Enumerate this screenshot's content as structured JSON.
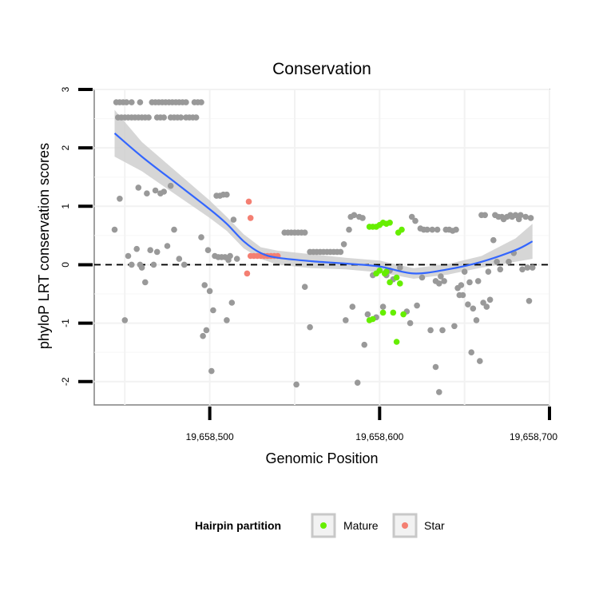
{
  "chart_data": {
    "type": "scatter",
    "title": "Conservation",
    "xlabel": "Genomic Position",
    "ylabel": "phyloP LRT conservation scores",
    "xlim": [
      19658432,
      19658700
    ],
    "ylim": [
      -2.4,
      3.0
    ],
    "x_ticks": [
      19658500,
      19658600,
      19658700
    ],
    "x_tick_labels": [
      "19,658,500",
      "19,658,600",
      "19,658,700"
    ],
    "y_ticks": [
      -2,
      -1,
      0,
      1,
      2,
      3
    ],
    "y_tick_labels": [
      "-2",
      "-1",
      "0",
      "1",
      "2",
      "3"
    ],
    "reference_line": {
      "y": 0,
      "style": "dashed"
    },
    "grid": true,
    "legend": {
      "title": "Hairpin partition",
      "position": "bottom",
      "entries": [
        {
          "label": "Mature",
          "color": "#66ee00"
        },
        {
          "label": "Star",
          "color": "#f47f72"
        }
      ]
    },
    "colors": {
      "background": "#e6e6e6",
      "points": "#999999",
      "smooth": "#3366ff",
      "ribbon": "#cfcfcf"
    },
    "series": [
      {
        "name": "Other",
        "color": "#999999",
        "points": [
          [
            19658445,
            2.78
          ],
          [
            19658447,
            2.78
          ],
          [
            19658449,
            2.78
          ],
          [
            19658451,
            2.78
          ],
          [
            19658454,
            2.78
          ],
          [
            19658459,
            2.78
          ],
          [
            19658466,
            2.78
          ],
          [
            19658468,
            2.78
          ],
          [
            19658470,
            2.78
          ],
          [
            19658472,
            2.78
          ],
          [
            19658474,
            2.78
          ],
          [
            19658476,
            2.78
          ],
          [
            19658478,
            2.78
          ],
          [
            19658480,
            2.78
          ],
          [
            19658482,
            2.78
          ],
          [
            19658484,
            2.78
          ],
          [
            19658486,
            2.78
          ],
          [
            19658491,
            2.78
          ],
          [
            19658493,
            2.78
          ],
          [
            19658495,
            2.78
          ],
          [
            19658446,
            2.52
          ],
          [
            19658448,
            2.52
          ],
          [
            19658450,
            2.52
          ],
          [
            19658452,
            2.52
          ],
          [
            19658454,
            2.52
          ],
          [
            19658456,
            2.52
          ],
          [
            19658458,
            2.52
          ],
          [
            19658460,
            2.52
          ],
          [
            19658462,
            2.52
          ],
          [
            19658464,
            2.52
          ],
          [
            19658469,
            2.52
          ],
          [
            19658471,
            2.52
          ],
          [
            19658473,
            2.52
          ],
          [
            19658477,
            2.52
          ],
          [
            19658479,
            2.52
          ],
          [
            19658481,
            2.52
          ],
          [
            19658483,
            2.52
          ],
          [
            19658486,
            2.52
          ],
          [
            19658488,
            2.52
          ],
          [
            19658490,
            2.52
          ],
          [
            19658492,
            2.52
          ],
          [
            19658444,
            0.6
          ],
          [
            19658447,
            1.13
          ],
          [
            19658450,
            -0.95
          ],
          [
            19658452,
            0.15
          ],
          [
            19658454,
            0.0
          ],
          [
            19658457,
            0.27
          ],
          [
            19658458,
            1.32
          ],
          [
            19658459,
            0.0
          ],
          [
            19658460,
            -0.05
          ],
          [
            19658462,
            -0.3
          ],
          [
            19658463,
            1.22
          ],
          [
            19658465,
            0.25
          ],
          [
            19658467,
            0.0
          ],
          [
            19658468,
            1.27
          ],
          [
            19658469,
            0.22
          ],
          [
            19658471,
            1.22
          ],
          [
            19658473,
            1.25
          ],
          [
            19658475,
            0.32
          ],
          [
            19658477,
            1.35
          ],
          [
            19658479,
            0.6
          ],
          [
            19658482,
            0.1
          ],
          [
            19658485,
            0.0
          ],
          [
            19658495,
            0.47
          ],
          [
            19658496,
            -1.22
          ],
          [
            19658497,
            -0.35
          ],
          [
            19658498,
            -1.12
          ],
          [
            19658499,
            0.25
          ],
          [
            19658500,
            -0.45
          ],
          [
            19658501,
            -1.82
          ],
          [
            19658502,
            -0.78
          ],
          [
            19658503,
            0.15
          ],
          [
            19658504,
            1.18
          ],
          [
            19658505,
            0.13
          ],
          [
            19658506,
            1.18
          ],
          [
            19658507,
            0.13
          ],
          [
            19658508,
            1.2
          ],
          [
            19658509,
            0.13
          ],
          [
            19658510,
            1.2
          ],
          [
            19658510,
            -0.95
          ],
          [
            19658511,
            0.08
          ],
          [
            19658512,
            0.15
          ],
          [
            19658513,
            -0.65
          ],
          [
            19658514,
            0.77
          ],
          [
            19658516,
            0.1
          ],
          [
            19658544,
            0.55
          ],
          [
            19658546,
            0.55
          ],
          [
            19658548,
            0.55
          ],
          [
            19658550,
            0.55
          ],
          [
            19658552,
            0.55
          ],
          [
            19658554,
            0.55
          ],
          [
            19658556,
            0.55
          ],
          [
            19658551,
            -2.05
          ],
          [
            19658556,
            -0.38
          ],
          [
            19658559,
            -1.07
          ],
          [
            19658559,
            0.22
          ],
          [
            19658561,
            0.22
          ],
          [
            19658563,
            0.22
          ],
          [
            19658565,
            0.22
          ],
          [
            19658567,
            0.22
          ],
          [
            19658569,
            0.22
          ],
          [
            19658571,
            0.22
          ],
          [
            19658573,
            0.22
          ],
          [
            19658575,
            0.22
          ],
          [
            19658577,
            0.22
          ],
          [
            19658579,
            0.35
          ],
          [
            19658580,
            -0.95
          ],
          [
            19658582,
            0.6
          ],
          [
            19658583,
            0.82
          ],
          [
            19658584,
            -0.72
          ],
          [
            19658585,
            0.85
          ],
          [
            19658587,
            -2.02
          ],
          [
            19658588,
            0.82
          ],
          [
            19658590,
            0.8
          ],
          [
            19658591,
            -1.37
          ],
          [
            19658593,
            -0.85
          ],
          [
            19658596,
            -0.18
          ],
          [
            19658598,
            -0.9
          ],
          [
            19658602,
            -0.72
          ],
          [
            19658604,
            -0.18
          ],
          [
            19658606,
            -0.1
          ],
          [
            19658608,
            -0.25
          ],
          [
            19658612,
            -0.05
          ],
          [
            19658616,
            -0.8
          ],
          [
            19658618,
            -1.0
          ],
          [
            19658619,
            0.82
          ],
          [
            19658621,
            0.75
          ],
          [
            19658622,
            -0.7
          ],
          [
            19658624,
            0.62
          ],
          [
            19658625,
            -0.22
          ],
          [
            19658626,
            0.6
          ],
          [
            19658628,
            0.6
          ],
          [
            19658630,
            -1.12
          ],
          [
            19658631,
            0.6
          ],
          [
            19658633,
            -0.28
          ],
          [
            19658633,
            -1.75
          ],
          [
            19658634,
            0.6
          ],
          [
            19658635,
            -0.32
          ],
          [
            19658635,
            -2.18
          ],
          [
            19658636,
            -0.2
          ],
          [
            19658637,
            -1.12
          ],
          [
            19658638,
            -0.28
          ],
          [
            19658639,
            0.6
          ],
          [
            19658641,
            0.6
          ],
          [
            19658643,
            0.58
          ],
          [
            19658644,
            -1.05
          ],
          [
            19658645,
            0.6
          ],
          [
            19658646,
            -0.4
          ],
          [
            19658647,
            -0.52
          ],
          [
            19658648,
            -0.35
          ],
          [
            19658649,
            -0.52
          ],
          [
            19658650,
            -0.12
          ],
          [
            19658652,
            -0.68
          ],
          [
            19658653,
            -0.3
          ],
          [
            19658654,
            -1.5
          ],
          [
            19658655,
            -0.75
          ],
          [
            19658657,
            -0.95
          ],
          [
            19658658,
            -0.28
          ],
          [
            19658659,
            -1.65
          ],
          [
            19658660,
            0.85
          ],
          [
            19658661,
            -0.65
          ],
          [
            19658662,
            0.85
          ],
          [
            19658663,
            -0.72
          ],
          [
            19658664,
            -0.12
          ],
          [
            19658665,
            -0.6
          ],
          [
            19658667,
            0.42
          ],
          [
            19658668,
            0.85
          ],
          [
            19658669,
            0.05
          ],
          [
            19658670,
            0.82
          ],
          [
            19658671,
            -0.08
          ],
          [
            19658672,
            0.82
          ],
          [
            19658673,
            0.78
          ],
          [
            19658675,
            0.82
          ],
          [
            19658676,
            0.05
          ],
          [
            19658677,
            0.85
          ],
          [
            19658678,
            0.82
          ],
          [
            19658679,
            0.2
          ],
          [
            19658680,
            0.85
          ],
          [
            19658682,
            0.78
          ],
          [
            19658683,
            0.85
          ],
          [
            19658684,
            -0.08
          ],
          [
            19658686,
            0.82
          ],
          [
            19658687,
            -0.05
          ],
          [
            19658688,
            -0.62
          ],
          [
            19658689,
            0.8
          ],
          [
            19658690,
            -0.05
          ]
        ]
      },
      {
        "name": "Mature",
        "color": "#66ee00",
        "points": [
          [
            19658594,
            0.65
          ],
          [
            19658596,
            0.65
          ],
          [
            19658598,
            0.65
          ],
          [
            19658600,
            0.68
          ],
          [
            19658602,
            0.72
          ],
          [
            19658604,
            0.7
          ],
          [
            19658606,
            0.72
          ],
          [
            19658611,
            0.55
          ],
          [
            19658613,
            0.6
          ],
          [
            19658594,
            -0.95
          ],
          [
            19658596,
            -0.93
          ],
          [
            19658598,
            -0.15
          ],
          [
            19658600,
            -0.1
          ],
          [
            19658602,
            -0.82
          ],
          [
            19658604,
            -0.12
          ],
          [
            19658606,
            -0.3
          ],
          [
            19658608,
            -0.82
          ],
          [
            19658610,
            -1.32
          ],
          [
            19658610,
            -0.22
          ],
          [
            19658612,
            -0.32
          ],
          [
            19658614,
            -0.85
          ],
          [
            19658603,
            -0.15
          ]
        ]
      },
      {
        "name": "Star",
        "color": "#f47f72",
        "points": [
          [
            19658523,
            1.08
          ],
          [
            19658524,
            0.8
          ],
          [
            19658522,
            -0.15
          ],
          [
            19658524,
            0.15
          ],
          [
            19658526,
            0.15
          ],
          [
            19658528,
            0.15
          ],
          [
            19658530,
            0.15
          ],
          [
            19658532,
            0.15
          ],
          [
            19658534,
            0.15
          ],
          [
            19658536,
            0.15
          ],
          [
            19658538,
            0.15
          ],
          [
            19658540,
            0.15
          ]
        ]
      }
    ],
    "smooth": {
      "x": [
        19658444,
        19658460,
        19658480,
        19658500,
        19658510,
        19658520,
        19658530,
        19658540,
        19658560,
        19658580,
        19658600,
        19658620,
        19658640,
        19658660,
        19658680,
        19658690
      ],
      "y": [
        2.25,
        1.85,
        1.4,
        0.95,
        0.7,
        0.4,
        0.2,
        0.12,
        0.06,
        0.02,
        -0.03,
        -0.15,
        -0.08,
        0.05,
        0.25,
        0.4
      ],
      "lower": [
        1.85,
        1.6,
        1.2,
        0.8,
        0.58,
        0.28,
        0.1,
        0.0,
        -0.06,
        -0.08,
        -0.13,
        -0.24,
        -0.17,
        -0.05,
        0.05,
        0.1
      ],
      "upper": [
        2.65,
        2.1,
        1.6,
        1.1,
        0.82,
        0.52,
        0.3,
        0.24,
        0.18,
        0.12,
        0.07,
        -0.06,
        0.01,
        0.15,
        0.45,
        0.7
      ]
    }
  }
}
